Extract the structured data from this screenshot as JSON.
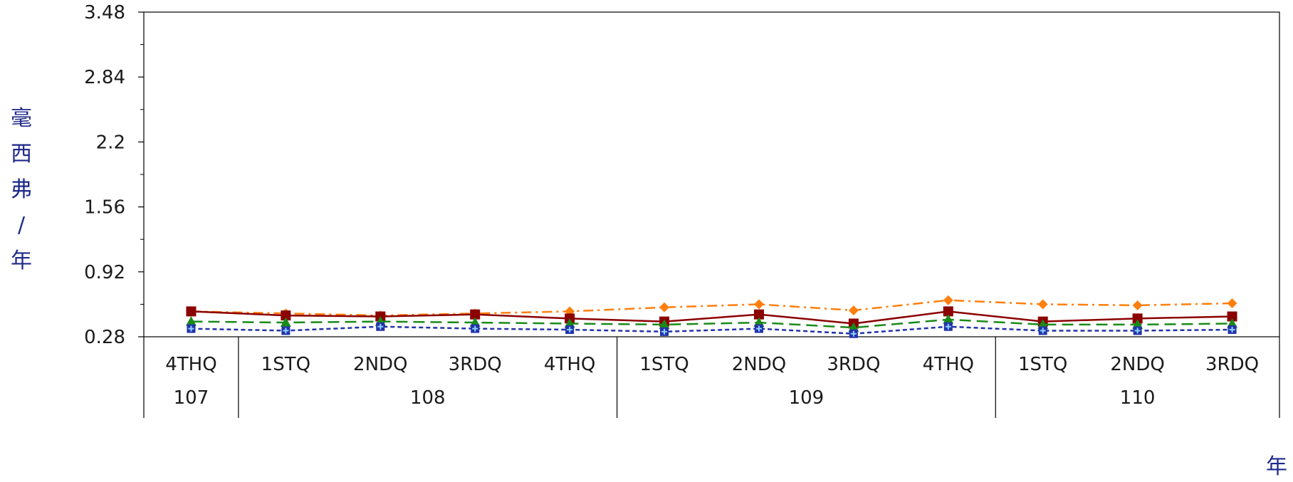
{
  "chart_data": {
    "type": "line",
    "title": "",
    "ylabel": "毫西弗/年",
    "xlabel": "年",
    "ylim": [
      0.28,
      3.48
    ],
    "yticks": [
      "3.48",
      "2.84",
      "2.2",
      "1.56",
      "0.92",
      "0.28"
    ],
    "categories": [
      "4THQ",
      "1STQ",
      "2NDQ",
      "3RDQ",
      "4THQ",
      "1STQ",
      "2NDQ",
      "3RDQ",
      "4THQ",
      "1STQ",
      "2NDQ",
      "3RDQ"
    ],
    "years": [
      {
        "label": "107",
        "start": 0,
        "end": 0
      },
      {
        "label": "108",
        "start": 1,
        "end": 4
      },
      {
        "label": "109",
        "start": 5,
        "end": 8
      },
      {
        "label": "110",
        "start": 9,
        "end": 11
      }
    ],
    "grid": false,
    "series": [
      {
        "color": "#ff7f0e",
        "marker": "diamond",
        "dash": "14 6 3 6",
        "width": 2.5,
        "values": [
          0.53,
          0.51,
          0.49,
          0.51,
          0.53,
          0.57,
          0.6,
          0.54,
          0.64,
          0.6,
          0.59,
          0.61
        ]
      },
      {
        "color": "#8b0000",
        "marker": "square",
        "dash": "",
        "width": 2.5,
        "values": [
          0.53,
          0.49,
          0.48,
          0.5,
          0.46,
          0.43,
          0.5,
          0.41,
          0.53,
          0.43,
          0.46,
          0.48
        ]
      },
      {
        "color": "#1a8a1a",
        "marker": "triangle",
        "dash": "16 8",
        "width": 2.5,
        "values": [
          0.43,
          0.42,
          0.43,
          0.42,
          0.41,
          0.4,
          0.42,
          0.37,
          0.45,
          0.4,
          0.4,
          0.41
        ]
      },
      {
        "color": "#2233aa",
        "marker": "square-plus",
        "dash": "6 4",
        "width": 2.5,
        "values": [
          0.36,
          0.34,
          0.38,
          0.36,
          0.35,
          0.33,
          0.36,
          0.31,
          0.38,
          0.34,
          0.34,
          0.35
        ]
      }
    ]
  }
}
